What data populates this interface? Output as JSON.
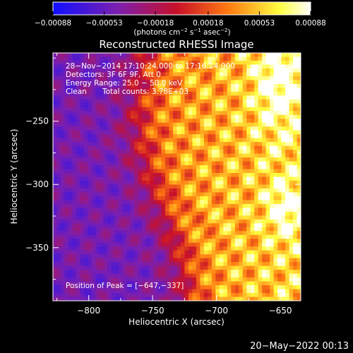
{
  "chart_data": {
    "type": "heatmap",
    "title": "Reconstructed RHESSI Image",
    "xlabel": "Heliocentric X (arcsec)",
    "ylabel": "Heliocentric Y (arcsec)",
    "xlim": [
      -828,
      -634
    ],
    "ylim": [
      -392,
      -196
    ],
    "xticks": [
      -800,
      -750,
      -700,
      -650
    ],
    "xtick_labels": [
      "−800",
      "−750",
      "−700",
      "−650"
    ],
    "yticks": [
      -350,
      -300,
      -250
    ],
    "ytick_labels": [
      "−350",
      "−300",
      "−250"
    ],
    "colorbar": {
      "range": [
        -0.00088,
        0.00088
      ],
      "ticks": [
        -0.00088,
        -0.00053,
        -0.00018,
        0.00018,
        0.00053,
        0.00088
      ],
      "tick_labels": [
        "−0.00088",
        "−0.00053",
        "−0.00018",
        "0.00018",
        "0.00053",
        "0.00088"
      ],
      "unit_parts": [
        "(photons cm",
        "−2",
        " s",
        "−1",
        " asec",
        "−2",
        ")"
      ],
      "colors": [
        "#1010ff",
        "#7b1fb0",
        "#c8102a",
        "#ff7a10",
        "#ffff40",
        "#ffffff"
      ]
    },
    "annotations": {
      "time": "28−Nov−2014 17:10:24.000 to 17:16:24.000",
      "detectors": "Detectors: 3F 6F 9F, Att 0",
      "energy": "Energy Range: 25.0 − 50.0 keV",
      "clean": "Clean",
      "counts": "Total counts: 3.78E+03",
      "peak": "Position of Peak = [−647,−337]"
    },
    "peak_position": [
      -647,
      -337
    ],
    "footer_date": "20−May−2022 00:13"
  }
}
